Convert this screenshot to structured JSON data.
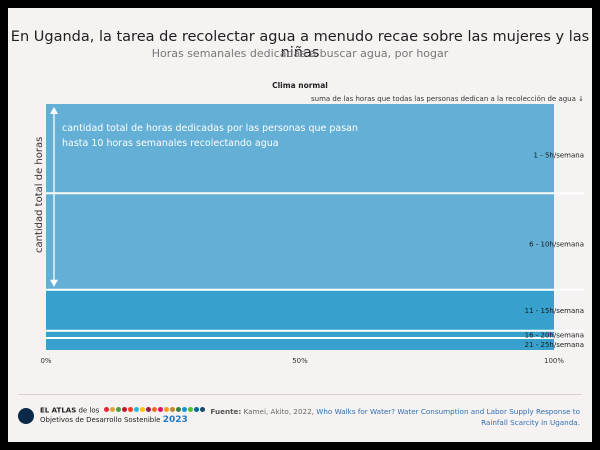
{
  "header": {
    "title": "En Uganda, la tarea de recolectar agua a menudo recae sobre las mujeres y las niñas",
    "subtitle": "Horas semanales dedicadas a buscar agua, por hogar"
  },
  "chart_data": {
    "type": "bar",
    "orientation": "stacked-vertical",
    "scenario_label": "Clima normal",
    "top_note": "suma de las horas que todas las personas dedican a la recolección de agua ↓",
    "ylabel": "cantidad total de horas",
    "annotation": "cantidad total de horas dedicadas por las personas que pasan hasta 10 horas semanales recolectando agua",
    "xlim": [
      0,
      100
    ],
    "x_unit": "%",
    "xticks": [
      "0%",
      "50%",
      "100%"
    ],
    "segments": [
      {
        "label": "1 - 5h/semana",
        "value": 37
      },
      {
        "label": "6 - 10h/semana",
        "value": 40
      },
      {
        "label": "11 - 15h/semana",
        "value": 17
      },
      {
        "label": "16 - 20h/semana",
        "value": 3
      },
      {
        "label": "21 - 25h/semana",
        "value": 5
      }
    ],
    "colors": {
      "light": "#63afd6",
      "dark": "#37a0cc",
      "divider": "#ffffff"
    }
  },
  "footer": {
    "brand_line1_bold": "EL ATLAS",
    "brand_line1_rest": " de los",
    "brand_line2": "Objetivos de Desarrollo Sostenible",
    "brand_year": "2023",
    "source_label": "Fuente:",
    "source_authors": " Kamei, Akito, 2022, ",
    "source_title": "Who Walks for Water? Water Consumption and Labor Supply Response to Rainfall Scarcity in Uganda.",
    "sdg_colors": [
      "#e5243b",
      "#dda63a",
      "#4c9f38",
      "#c5192d",
      "#ff3a21",
      "#26bde2",
      "#fcc30b",
      "#a21942",
      "#fd6925",
      "#dd1367",
      "#fd9d24",
      "#bf8b2e",
      "#3f7e44",
      "#0a97d9",
      "#56c02b",
      "#00689d",
      "#19486a"
    ]
  }
}
